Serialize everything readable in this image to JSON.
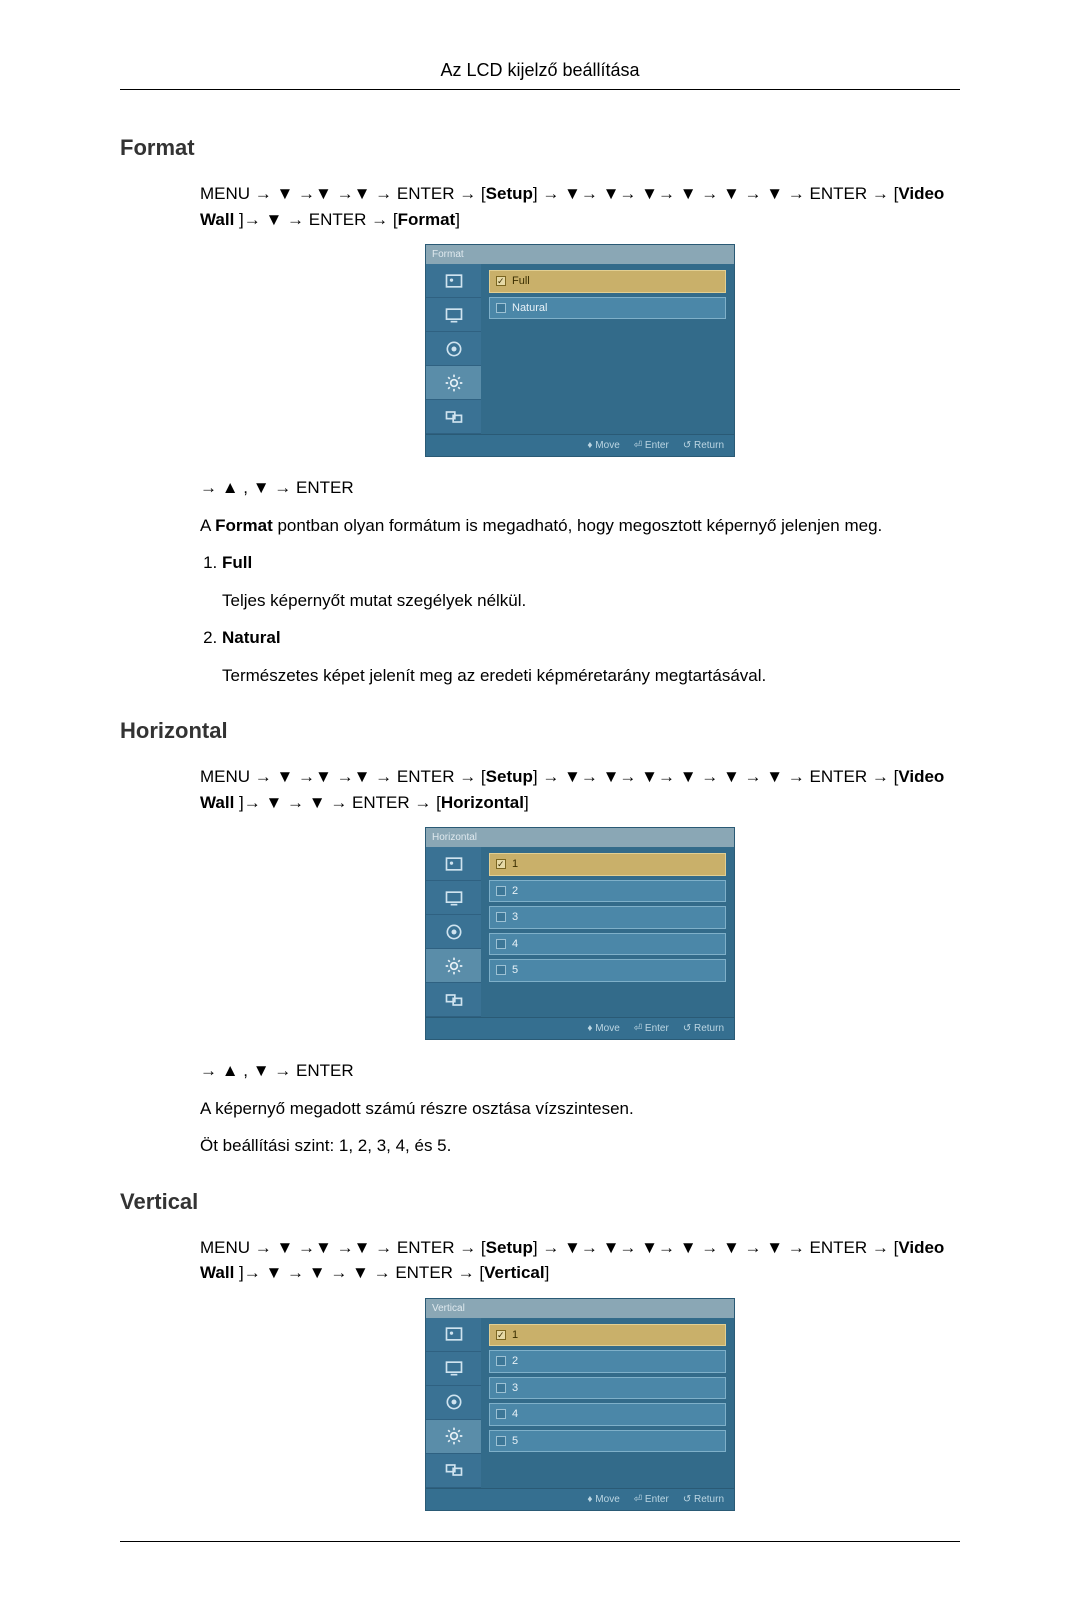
{
  "page_header": "Az LCD kijelző beállítása",
  "sections": {
    "format": {
      "heading": "Format",
      "nav_line1_pre": "MENU → ▼ →▼ →▼ → ENTER → [",
      "nav_setup": "Setup",
      "nav_line1_mid": "] → ▼→ ▼→ ▼→ ▼ → ▼ → ▼ → ENTER → [",
      "nav_video": "Video Wall",
      "nav_line1_post": " ]→ ▼ → ENTER → [",
      "nav_target": "Format",
      "nav_line1_end": "]",
      "after_fig": "→ ▲ , ▼ → ENTER",
      "desc_pre": "A ",
      "desc_bold": "Format",
      "desc_post": " pontban olyan formátum is megadható, hogy megosztott képernyő jelenjen meg.",
      "options": [
        {
          "label": "Full",
          "desc": "Teljes képernyőt mutat szegélyek nélkül."
        },
        {
          "label": "Natural",
          "desc": "Természetes képet jelenít meg az eredeti képméretarány megtartásával."
        }
      ],
      "figure": {
        "title": "Format",
        "items": [
          "Full",
          "Natural"
        ],
        "selected_index": 0,
        "colors": {
          "panel_bg": "#336b8a",
          "side_bg": "#3a7294",
          "item_bg": "#4b87a8",
          "item_sel_bg": "#c9b06a",
          "title_bg": "#8aa7b5"
        },
        "footer": [
          "♦ Move",
          "⏎ Enter",
          "↺ Return"
        ]
      }
    },
    "horizontal": {
      "heading": "Horizontal",
      "nav_line1_pre": "MENU → ▼ →▼ →▼ → ENTER → [",
      "nav_setup": "Setup",
      "nav_line1_mid": "] → ▼→ ▼→ ▼→ ▼ → ▼ → ▼ → ENTER → [",
      "nav_video": "Video Wall",
      "nav_line1_post": " ]→ ▼ → ▼ → ENTER → [",
      "nav_target": "Horizontal",
      "nav_line1_end": "]",
      "after_fig": "→ ▲ , ▼ → ENTER",
      "desc1": "A képernyő megadott számú részre osztása vízszintesen.",
      "desc2": "Öt beállítási szint: 1, 2, 3, 4, és 5.",
      "figure": {
        "title": "Horizontal",
        "items": [
          "1",
          "2",
          "3",
          "4",
          "5"
        ],
        "selected_index": 0,
        "footer": [
          "♦ Move",
          "⏎ Enter",
          "↺ Return"
        ]
      }
    },
    "vertical": {
      "heading": "Vertical",
      "nav_line1_pre": "MENU → ▼ →▼ →▼ → ENTER → [",
      "nav_setup": "Setup",
      "nav_line1_mid": "] → ▼→ ▼→ ▼→ ▼ → ▼ → ▼ → ENTER → [",
      "nav_video": "Video Wall",
      "nav_line1_post": " ]→ ▼ → ▼ → ▼ → ENTER → [",
      "nav_target": "Vertical",
      "nav_line1_end": "]",
      "figure": {
        "title": "Vertical",
        "items": [
          "1",
          "2",
          "3",
          "4",
          "5"
        ],
        "selected_index": 0,
        "footer": [
          "♦ Move",
          "⏎ Enter",
          "↺ Return"
        ]
      }
    }
  },
  "side_icons": [
    "picture",
    "screen",
    "sound",
    "settings",
    "multi"
  ]
}
